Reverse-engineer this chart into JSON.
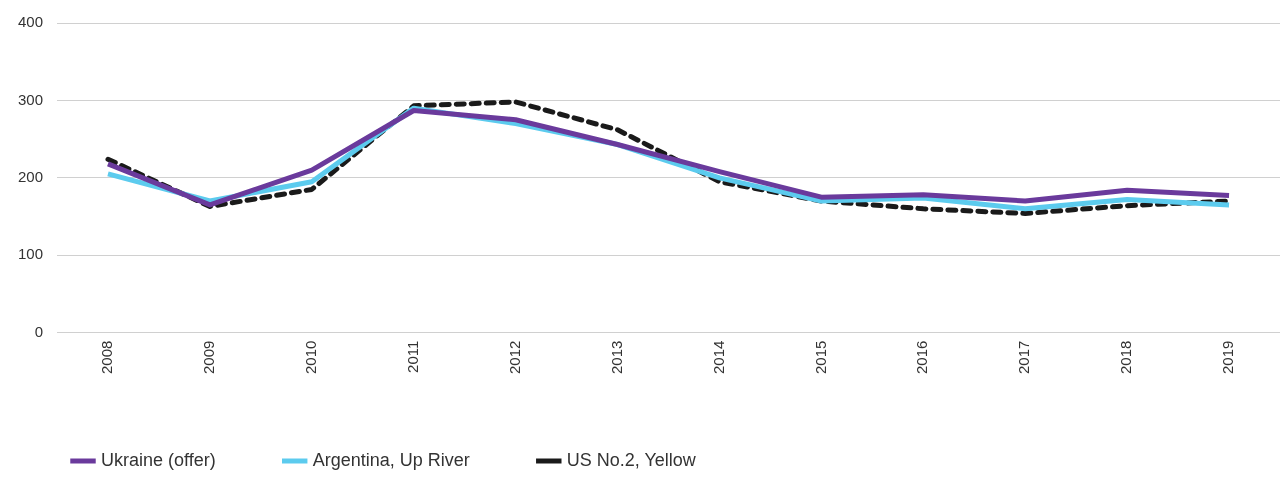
{
  "chart_data": {
    "type": "line",
    "categories": [
      "2008",
      "2009",
      "2010",
      "2011",
      "2012",
      "2013",
      "2014",
      "2015",
      "2016",
      "2017",
      "2018",
      "2019"
    ],
    "series": [
      {
        "name": "Ukraine (offer)",
        "color": "#6a3a9c",
        "values": [
          218,
          165,
          210,
          287,
          275,
          243,
          208,
          175,
          178,
          170,
          184,
          177
        ]
      },
      {
        "name": "Argentina, Up River",
        "color": "#5ccbee",
        "values": [
          205,
          170,
          195,
          290,
          270,
          243,
          200,
          170,
          174,
          160,
          172,
          165
        ]
      },
      {
        "name": "US No.2, Yellow",
        "color": "#1a1a1a",
        "line_style": "dashed",
        "values": [
          224,
          163,
          185,
          293,
          298,
          262,
          195,
          170,
          160,
          154,
          164,
          170
        ]
      }
    ],
    "ylim": [
      0,
      400
    ],
    "yticks": [
      0,
      100,
      200,
      300,
      400
    ],
    "grid": "y",
    "legend": "bottom",
    "marker": "none"
  }
}
